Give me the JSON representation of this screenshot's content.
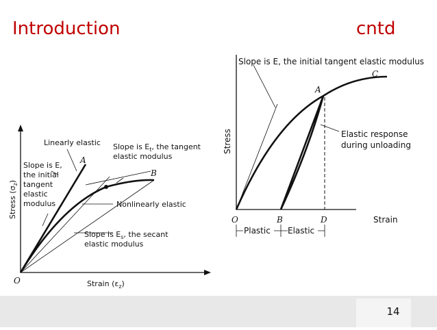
{
  "header": {
    "title": "Introduction",
    "subtitle": "cntd"
  },
  "left_diagram": {
    "y_axis_label": [
      "Stress (σ",
      "z",
      ")"
    ],
    "x_axis_label": [
      "Strain (ε",
      "z",
      ")"
    ],
    "origin": "O",
    "point_a": "A",
    "point_b": "B",
    "linear_label": "Linearly elastic",
    "initial_label": [
      "Slope is E,",
      "the initial",
      "tangent",
      "elastic",
      "modulus"
    ],
    "tangent_label": {
      "line1": [
        "Slope is E",
        "t",
        ", the tangent"
      ],
      "line2": "elastic modulus"
    },
    "nonlinear_label": "Nonlinearly elastic",
    "secant_label": {
      "line1": [
        "Slope is E",
        "s",
        ", the secant"
      ],
      "line2": "elastic modulus"
    }
  },
  "right_diagram": {
    "y_axis_label": "Stress",
    "x_axis_label": "Strain",
    "slope_label": "Slope is E, the initial tangent elastic modulus",
    "point_c": "C",
    "point_a": "A",
    "origin": "O",
    "point_b": "B",
    "point_d": "D",
    "response_label": [
      "Elastic response",
      "during unloading"
    ],
    "plastic_label": "Plastic",
    "elastic_label": "Elastic"
  },
  "footer": {
    "page_number": "14"
  }
}
